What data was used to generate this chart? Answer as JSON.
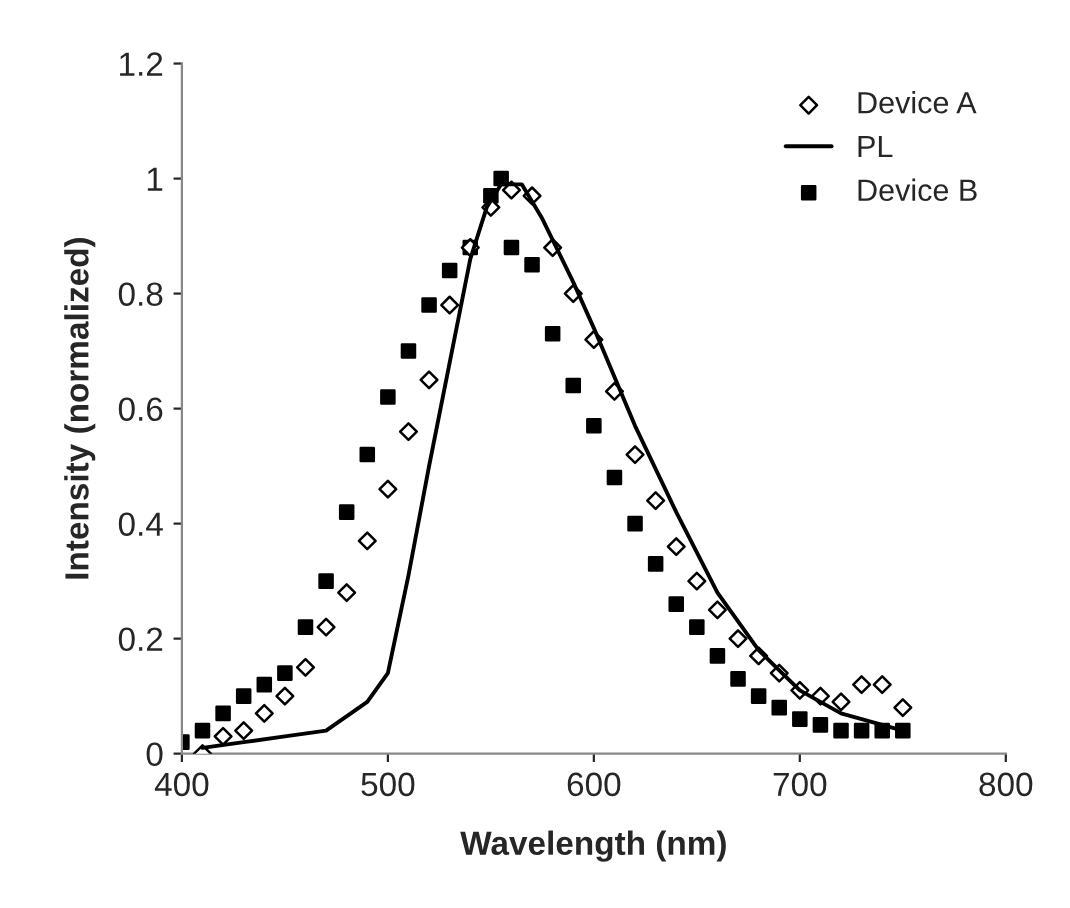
{
  "chart_data": {
    "type": "scatter",
    "xlabel": "Wavelength (nm)",
    "ylabel": "Intensity (normalized)",
    "xlim": [
      400,
      800
    ],
    "xticks": [
      400,
      500,
      600,
      700,
      800
    ],
    "ylim": [
      0,
      1.2
    ],
    "yticks": [
      0,
      {
        "value": 0.2,
        "label": "0.2"
      },
      {
        "value": 0.4,
        "label": "0.4"
      },
      {
        "value": 0.6,
        "label": "0.6"
      },
      {
        "value": 0.8,
        "label": "0.8"
      },
      1,
      {
        "value": 1.2,
        "label": "1.2"
      }
    ],
    "grid": false,
    "legend": "top right",
    "series": [
      {
        "name": "Device A",
        "marker": "diamond",
        "color": "#000000",
        "x": [
          410,
          420,
          430,
          440,
          450,
          460,
          470,
          480,
          490,
          500,
          510,
          520,
          530,
          540,
          550,
          560,
          570,
          580,
          590,
          600,
          610,
          620,
          630,
          640,
          650,
          660,
          670,
          680,
          690,
          700,
          710,
          720,
          730,
          740,
          750
        ],
        "values": [
          0.0,
          0.03,
          0.04,
          0.07,
          0.1,
          0.15,
          0.22,
          0.28,
          0.37,
          0.46,
          0.56,
          0.65,
          0.78,
          0.88,
          0.95,
          0.98,
          0.97,
          0.88,
          0.8,
          0.72,
          0.63,
          0.52,
          0.44,
          0.36,
          0.3,
          0.25,
          0.2,
          0.17,
          0.14,
          0.11,
          0.1,
          0.09,
          0.12,
          0.12,
          0.08
        ]
      },
      {
        "name": "PL",
        "type": "line",
        "marker": "none",
        "color": "#000000",
        "x": [
          410,
          430,
          450,
          470,
          490,
          500,
          510,
          520,
          530,
          540,
          548,
          555,
          565,
          575,
          590,
          600,
          620,
          640,
          660,
          680,
          700,
          720,
          740,
          750
        ],
        "values": [
          0.01,
          0.02,
          0.03,
          0.04,
          0.09,
          0.14,
          0.31,
          0.5,
          0.68,
          0.86,
          0.95,
          0.99,
          0.99,
          0.93,
          0.82,
          0.74,
          0.57,
          0.42,
          0.28,
          0.18,
          0.11,
          0.07,
          0.05,
          0.04
        ]
      },
      {
        "name": "Device B",
        "marker": "square",
        "color": "#000000",
        "x": [
          400,
          410,
          420,
          430,
          440,
          450,
          460,
          470,
          480,
          490,
          500,
          510,
          520,
          530,
          540,
          550,
          555,
          560,
          570,
          580,
          590,
          600,
          610,
          620,
          630,
          640,
          650,
          660,
          670,
          680,
          690,
          700,
          710,
          720,
          730,
          740,
          750
        ],
        "values": [
          0.02,
          0.04,
          0.07,
          0.1,
          0.12,
          0.14,
          0.22,
          0.3,
          0.42,
          0.52,
          0.62,
          0.7,
          0.78,
          0.84,
          0.88,
          0.97,
          1.0,
          0.88,
          0.85,
          0.73,
          0.64,
          0.57,
          0.48,
          0.4,
          0.33,
          0.26,
          0.22,
          0.17,
          0.13,
          0.1,
          0.08,
          0.06,
          0.05,
          0.04,
          0.04,
          0.04,
          0.04
        ]
      }
    ]
  }
}
